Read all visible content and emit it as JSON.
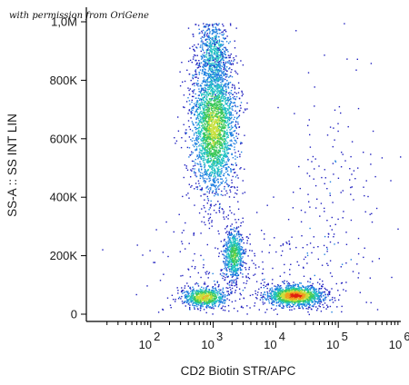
{
  "watermark": "with permission from OriGene",
  "chart_data": {
    "type": "scatter",
    "subtype": "flow-cytometry density dot plot",
    "title": "",
    "xlabel": "CD2 Biotin STR/APC",
    "ylabel": "SS-A :: SS INT LIN",
    "x_scale": "log",
    "y_scale": "linear",
    "xlim": [
      10,
      1000000
    ],
    "ylim": [
      0,
      1000000
    ],
    "x_ticks": [
      {
        "value": 100,
        "base": "10",
        "exp": "2"
      },
      {
        "value": 1000,
        "base": "10",
        "exp": "3"
      },
      {
        "value": 10000,
        "base": "10",
        "exp": "4"
      },
      {
        "value": 100000,
        "base": "10",
        "exp": "5"
      },
      {
        "value": 1000000,
        "base": "10",
        "exp": "6"
      }
    ],
    "y_ticks": [
      {
        "value": 0,
        "label": "0"
      },
      {
        "value": 200000,
        "label": "200K"
      },
      {
        "value": 400000,
        "label": "400K"
      },
      {
        "value": 600000,
        "label": "600K"
      },
      {
        "value": 800000,
        "label": "800K"
      },
      {
        "value": 1000000,
        "label": "1,0M"
      }
    ],
    "grid": false,
    "legend": "none",
    "color_scale": [
      "#1f1fbf",
      "#1f7fe0",
      "#22c3c3",
      "#3cc85a",
      "#c8e03c",
      "#f0a020",
      "#e02010"
    ],
    "populations": [
      {
        "cx_log10": 3.0,
        "cy": 640000,
        "sx_log10": 0.18,
        "sy": 115000,
        "n": 2600,
        "density": 0.65
      },
      {
        "cx_log10": 3.0,
        "cy": 880000,
        "sx_log10": 0.14,
        "sy": 70000,
        "n": 700,
        "density": 0.35
      },
      {
        "cx_log10": 3.32,
        "cy": 205000,
        "sx_log10": 0.08,
        "sy": 45000,
        "n": 650,
        "density": 0.55
      },
      {
        "cx_log10": 2.85,
        "cy": 60000,
        "sx_log10": 0.18,
        "sy": 18000,
        "n": 700,
        "density": 0.75
      },
      {
        "cx_log10": 4.3,
        "cy": 65000,
        "sx_log10": 0.22,
        "sy": 17000,
        "n": 1500,
        "density": 1.0
      },
      {
        "cx_log10": 4.9,
        "cy": 300000,
        "sx_log10": 0.45,
        "sy": 240000,
        "n": 220,
        "density": 0.05
      },
      {
        "cx_log10": 3.4,
        "cy": 140000,
        "sx_log10": 0.7,
        "sy": 100000,
        "n": 320,
        "density": 0.05
      }
    ]
  }
}
